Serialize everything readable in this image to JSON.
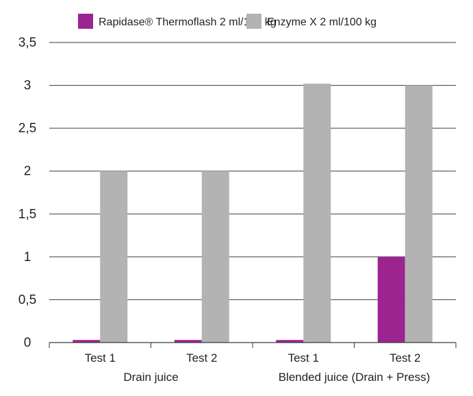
{
  "chart_data": {
    "type": "bar",
    "title": "",
    "xlabel": "",
    "ylabel": "",
    "ylim": [
      0,
      3.5
    ],
    "yticks": [
      "0",
      "0,5",
      "1",
      "1,5",
      "2",
      "2,5",
      "3",
      "3,5"
    ],
    "grid": true,
    "legend_position": "top",
    "categories": [
      "Test 1",
      "Test 2",
      "Test 1",
      "Test 2"
    ],
    "groups": [
      {
        "label": "Drain juice",
        "span": [
          0,
          1
        ]
      },
      {
        "label": "Blended juice (Drain + Press)",
        "span": [
          2,
          3
        ]
      }
    ],
    "series": [
      {
        "name": "Rapidase® Thermoflash 2 ml/100 kg",
        "color": "#9b2491",
        "values": [
          0.03,
          0.03,
          0.03,
          1.0
        ]
      },
      {
        "name": "Enzyme X 2 ml/100 kg",
        "color": "#b3b3b3",
        "values": [
          2.0,
          2.0,
          3.02,
          3.0
        ]
      }
    ]
  }
}
